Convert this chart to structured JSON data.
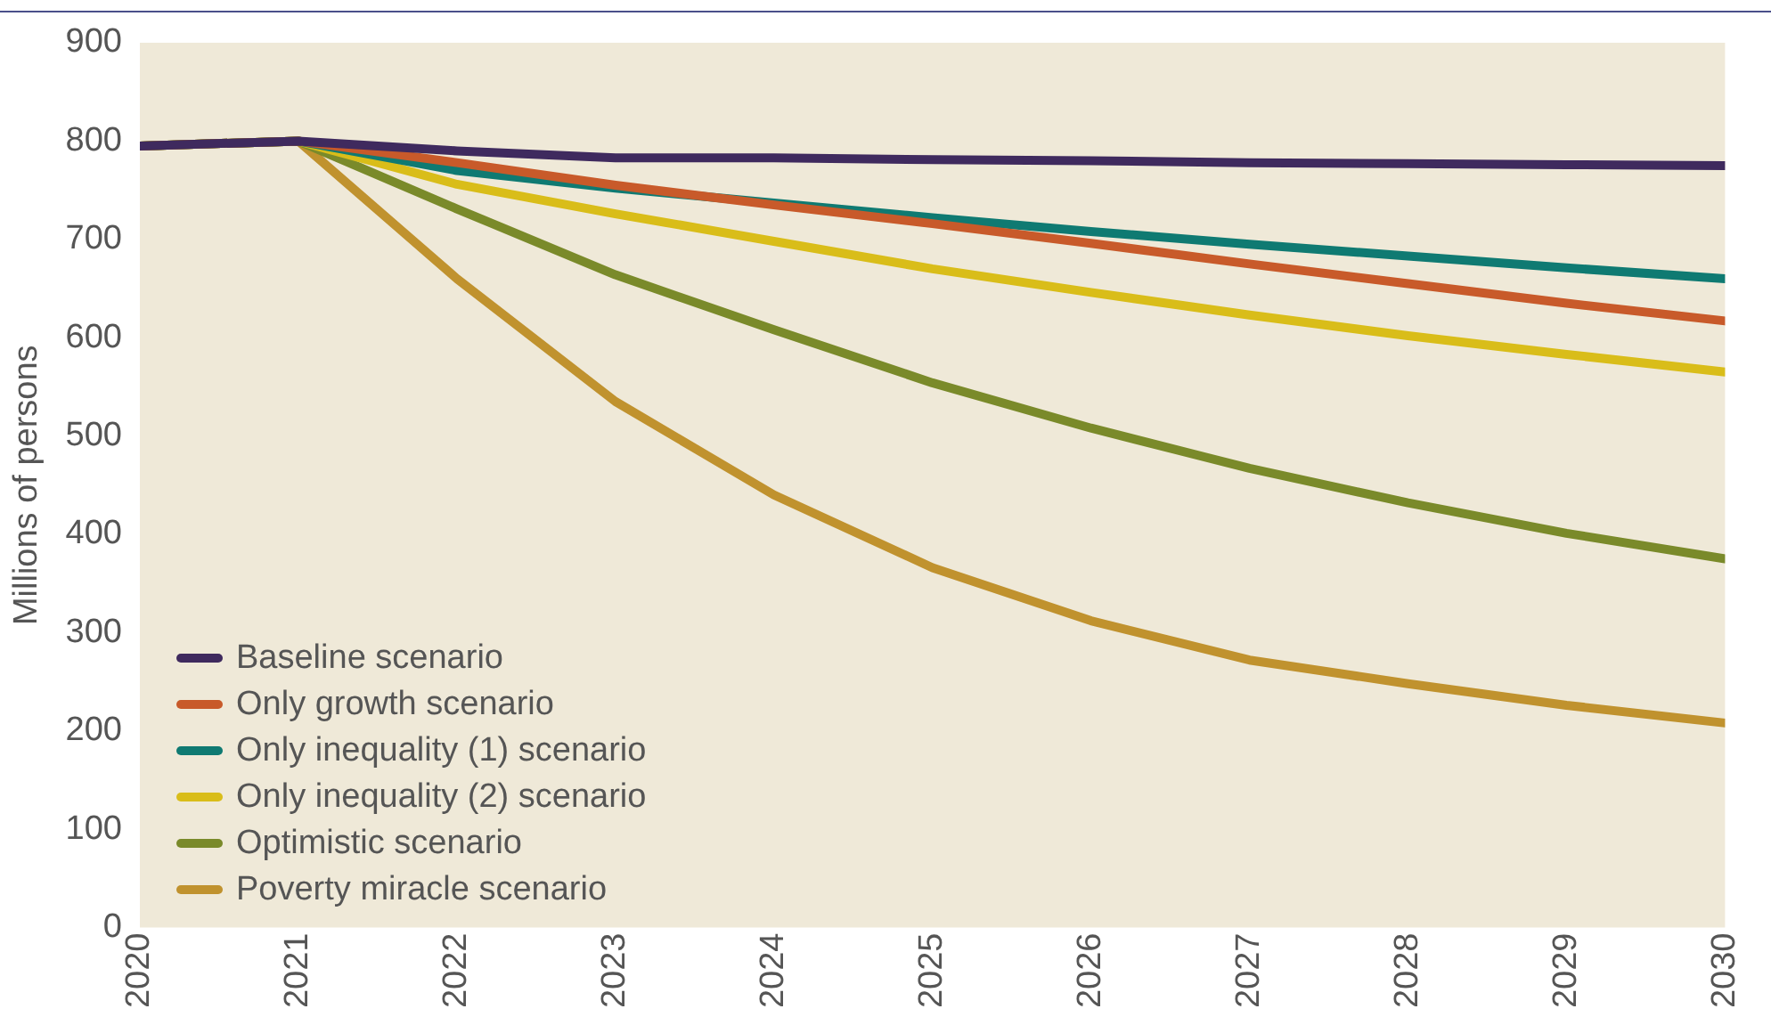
{
  "chart_data": {
    "type": "line",
    "ylabel": "Millions of persons",
    "x": [
      2020,
      2021,
      2022,
      2023,
      2024,
      2025,
      2026,
      2027,
      2028,
      2029,
      2030
    ],
    "xlim": [
      2020,
      2030
    ],
    "xticks": [
      2020,
      2021,
      2022,
      2023,
      2024,
      2025,
      2026,
      2027,
      2028,
      2029,
      2030
    ],
    "ylim": [
      0,
      900
    ],
    "yticks": [
      0,
      100,
      200,
      300,
      400,
      500,
      600,
      700,
      800,
      900
    ],
    "grid": false,
    "legend": "bottom left",
    "marker": "none",
    "line_style": "solid",
    "series": [
      {
        "name": "Baseline scenario",
        "color": "#3f2a5e",
        "values": [
          795,
          800,
          790,
          783,
          783,
          781,
          780,
          778,
          777,
          776,
          775
        ]
      },
      {
        "name": "Only growth scenario",
        "color": "#c85a2a",
        "values": [
          795,
          800,
          778,
          755,
          735,
          716,
          696,
          675,
          655,
          635,
          617
        ]
      },
      {
        "name": "Only inequality (1) scenario",
        "color": "#0f7a72",
        "values": [
          795,
          800,
          770,
          752,
          737,
          722,
          708,
          695,
          683,
          671,
          660
        ]
      },
      {
        "name": "Only inequality (2) scenario",
        "color": "#d9bd19",
        "values": [
          795,
          800,
          756,
          726,
          698,
          670,
          646,
          623,
          602,
          583,
          565
        ]
      },
      {
        "name": "Optimistic scenario",
        "color": "#7a8a2a",
        "values": [
          795,
          800,
          731,
          664,
          608,
          554,
          508,
          467,
          432,
          401,
          375
        ]
      },
      {
        "name": "Poverty miracle scenario",
        "color": "#c0922e",
        "values": [
          795,
          800,
          660,
          535,
          440,
          366,
          312,
          272,
          248,
          226,
          208
        ]
      }
    ]
  }
}
